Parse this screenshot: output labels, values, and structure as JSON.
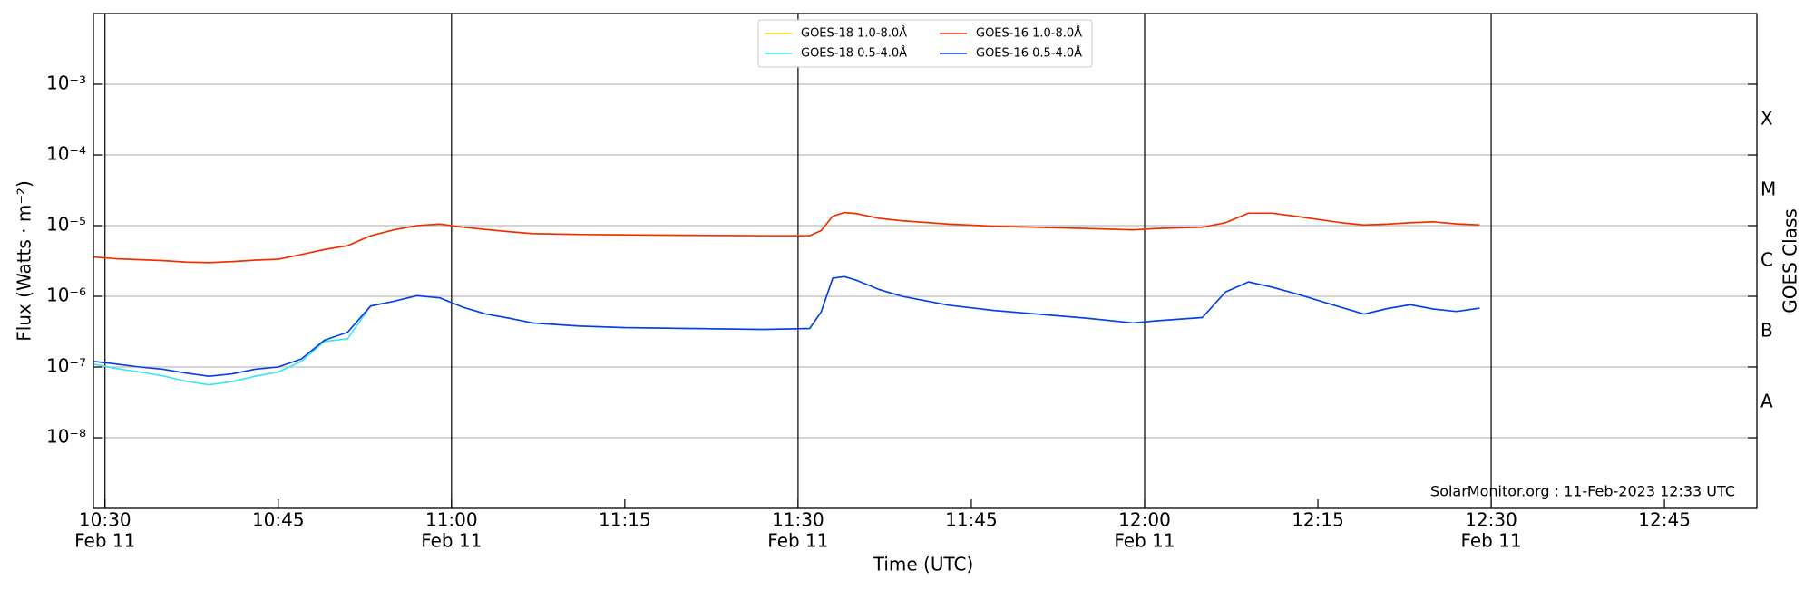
{
  "chart_data": {
    "type": "line",
    "xlabel": "Time (UTC)",
    "ylabel": "Flux (Watts · m⁻²)",
    "y2label": "GOES Class",
    "annotation": "SolarMonitor.org : 11-Feb-2023 12:33 UTC",
    "yscale": "log",
    "ylim": [
      1e-09,
      0.01
    ],
    "yticks": [
      {
        "value": 1e-08,
        "label": "10⁻⁸"
      },
      {
        "value": 1e-07,
        "label": "10⁻⁷"
      },
      {
        "value": 1e-06,
        "label": "10⁻⁶"
      },
      {
        "value": 1e-05,
        "label": "10⁻⁵"
      },
      {
        "value": 0.0001,
        "label": "10⁻⁴"
      },
      {
        "value": 0.001,
        "label": "10⁻³"
      }
    ],
    "ygrid": true,
    "xlim": [
      "10:29",
      "12:53"
    ],
    "xticks": [
      "10:30",
      "10:45",
      "11:00",
      "11:15",
      "11:30",
      "11:45",
      "12:00",
      "12:15",
      "12:30",
      "12:45"
    ],
    "xtick_sublabels": [
      "Feb 11",
      null,
      "Feb 11",
      null,
      "Feb 11",
      null,
      "Feb 11",
      null,
      "Feb 11",
      null
    ],
    "classes": [
      {
        "label": "A",
        "range": [
          1e-08,
          1e-07
        ]
      },
      {
        "label": "B",
        "range": [
          1e-07,
          1e-06
        ]
      },
      {
        "label": "C",
        "range": [
          1e-06,
          1e-05
        ]
      },
      {
        "label": "M",
        "range": [
          1e-05,
          0.0001
        ]
      },
      {
        "label": "X",
        "range": [
          0.0001,
          0.001
        ]
      }
    ],
    "legend": "top-center",
    "x": [
      "10:29",
      "10:31",
      "10:33",
      "10:35",
      "10:37",
      "10:39",
      "10:41",
      "10:43",
      "10:45",
      "10:47",
      "10:49",
      "10:51",
      "10:53",
      "10:55",
      "10:57",
      "10:59",
      "11:01",
      "11:03",
      "11:05",
      "11:07",
      "11:11",
      "11:15",
      "11:21",
      "11:27",
      "11:31",
      "11:32",
      "11:33",
      "11:34",
      "11:35",
      "11:37",
      "11:39",
      "11:43",
      "11:47",
      "11:55",
      "11:59",
      "12:01",
      "12:05",
      "12:07",
      "12:09",
      "12:11",
      "12:13",
      "12:17",
      "12:19",
      "12:21",
      "12:23",
      "12:25",
      "12:27",
      "12:29"
    ],
    "series": [
      {
        "name": "GOES-18 1.0-8.0Å",
        "color": "#ffd700",
        "values": [
          3.6e-06,
          3.4e-06,
          3.3e-06,
          3.2e-06,
          3.05e-06,
          3e-06,
          3.1e-06,
          3.25e-06,
          3.35e-06,
          3.9e-06,
          4.6e-06,
          5.2e-06,
          7.2e-06,
          8.7e-06,
          1e-05,
          1.05e-05,
          9.5e-06,
          8.8e-06,
          8.2e-06,
          7.7e-06,
          7.5e-06,
          7.4e-06,
          7.3e-06,
          7.2e-06,
          7.2e-06,
          8.5e-06,
          1.36e-05,
          1.53e-05,
          1.48e-05,
          1.27e-05,
          1.17e-05,
          1.05e-05,
          9.8e-06,
          9.1e-06,
          8.7e-06,
          9.1e-06,
          9.5e-06,
          1.1e-05,
          1.5e-05,
          1.5e-05,
          1.36e-05,
          1.1e-05,
          1.02e-05,
          1.05e-05,
          1.1e-05,
          1.13e-05,
          1.06e-05,
          1.02e-05
        ]
      },
      {
        "name": "GOES-18 0.5-4.0Å",
        "color": "#33e6f2",
        "values": [
          1.1e-07,
          9.5e-08,
          8.5e-08,
          7.5e-08,
          6.3e-08,
          5.6e-08,
          6.2e-08,
          7.4e-08,
          8.5e-08,
          1.2e-07,
          2.3e-07,
          2.5e-07,
          7.3e-07,
          8.5e-07,
          1.02e-06,
          9.5e-07,
          7e-07,
          5.6e-07,
          4.9e-07,
          4.2e-07,
          3.8e-07,
          3.6e-07,
          3.5e-07,
          3.4e-07,
          3.5e-07,
          6e-07,
          1.8e-06,
          1.9e-06,
          1.7e-06,
          1.25e-06,
          1e-06,
          7.5e-07,
          6.3e-07,
          4.9e-07,
          4.2e-07,
          4.5e-07,
          5e-07,
          1.15e-06,
          1.6e-06,
          1.35e-06,
          1.1e-06,
          7e-07,
          5.6e-07,
          6.7e-07,
          7.6e-07,
          6.6e-07,
          6.1e-07,
          6.8e-07
        ]
      },
      {
        "name": "GOES-16 1.0-8.0Å",
        "color": "#f02a0a",
        "values": [
          3.6e-06,
          3.4e-06,
          3.3e-06,
          3.2e-06,
          3.05e-06,
          3e-06,
          3.1e-06,
          3.25e-06,
          3.35e-06,
          3.9e-06,
          4.6e-06,
          5.2e-06,
          7.2e-06,
          8.7e-06,
          1e-05,
          1.05e-05,
          9.5e-06,
          8.8e-06,
          8.2e-06,
          7.7e-06,
          7.5e-06,
          7.4e-06,
          7.3e-06,
          7.2e-06,
          7.2e-06,
          8.5e-06,
          1.36e-05,
          1.53e-05,
          1.48e-05,
          1.27e-05,
          1.17e-05,
          1.05e-05,
          9.8e-06,
          9.1e-06,
          8.7e-06,
          9.1e-06,
          9.5e-06,
          1.1e-05,
          1.5e-05,
          1.5e-05,
          1.36e-05,
          1.1e-05,
          1.02e-05,
          1.05e-05,
          1.1e-05,
          1.13e-05,
          1.06e-05,
          1.02e-05
        ]
      },
      {
        "name": "GOES-16 0.5-4.0Å",
        "color": "#0a3ce6",
        "values": [
          1.2e-07,
          1.1e-07,
          1e-07,
          9.3e-08,
          8.2e-08,
          7.4e-08,
          8e-08,
          9.3e-08,
          1e-07,
          1.3e-07,
          2.4e-07,
          3.1e-07,
          7.3e-07,
          8.5e-07,
          1.02e-06,
          9.5e-07,
          7e-07,
          5.6e-07,
          4.9e-07,
          4.2e-07,
          3.8e-07,
          3.6e-07,
          3.5e-07,
          3.4e-07,
          3.5e-07,
          6e-07,
          1.8e-06,
          1.9e-06,
          1.7e-06,
          1.25e-06,
          1e-06,
          7.5e-07,
          6.3e-07,
          4.9e-07,
          4.2e-07,
          4.5e-07,
          5e-07,
          1.15e-06,
          1.6e-06,
          1.35e-06,
          1.1e-06,
          7e-07,
          5.6e-07,
          6.7e-07,
          7.6e-07,
          6.6e-07,
          6.1e-07,
          6.8e-07
        ]
      }
    ]
  }
}
